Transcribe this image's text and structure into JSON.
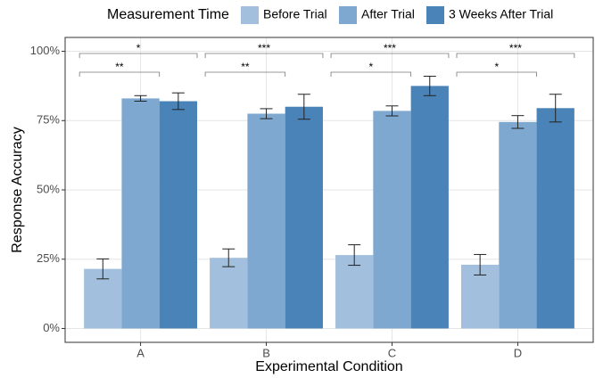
{
  "chart_data": {
    "type": "bar",
    "legend_title": "Measurement Time",
    "x_label": "Experimental Condition",
    "y_label": "Response Accuracy",
    "categories": [
      "A",
      "B",
      "C",
      "D"
    ],
    "series": [
      {
        "name": "Before Trial",
        "color": "#a2c0dd",
        "values": [
          21.5,
          25.5,
          26.5,
          23
        ],
        "errors": [
          3.6,
          3.2,
          3.7,
          3.7
        ]
      },
      {
        "name": "After Trial",
        "color": "#7ea8d0",
        "values": [
          83,
          77.5,
          78.5,
          74.5
        ],
        "errors": [
          1,
          1.8,
          1.8,
          2.3
        ]
      },
      {
        "name": "3 Weeks After Trial",
        "color": "#4a83b8",
        "values": [
          82,
          80,
          87.5,
          79.5
        ],
        "errors": [
          3,
          4.5,
          3.5,
          5
        ]
      }
    ],
    "annotations": [
      {
        "category": "A",
        "from": "Before Trial",
        "to": "3 Weeks After Trial",
        "label": "*"
      },
      {
        "category": "A",
        "from": "Before Trial",
        "to": "After Trial",
        "label": "**"
      },
      {
        "category": "B",
        "from": "Before Trial",
        "to": "3 Weeks After Trial",
        "label": "***"
      },
      {
        "category": "B",
        "from": "Before Trial",
        "to": "After Trial",
        "label": "**"
      },
      {
        "category": "C",
        "from": "Before Trial",
        "to": "3 Weeks After Trial",
        "label": "***"
      },
      {
        "category": "C",
        "from": "Before Trial",
        "to": "After Trial",
        "label": "*"
      },
      {
        "category": "D",
        "from": "Before Trial",
        "to": "3 Weeks After Trial",
        "label": "***"
      },
      {
        "category": "D",
        "from": "Before Trial",
        "to": "After Trial",
        "label": "*"
      }
    ],
    "ylim": [
      -5,
      105
    ],
    "yticks": [
      {
        "value": 0,
        "label": "0%"
      },
      {
        "value": 25,
        "label": "25%"
      },
      {
        "value": 50,
        "label": "50%"
      },
      {
        "value": 75,
        "label": "75%"
      },
      {
        "value": 100,
        "label": "100%"
      }
    ],
    "grid": true,
    "legend_position": "top"
  }
}
